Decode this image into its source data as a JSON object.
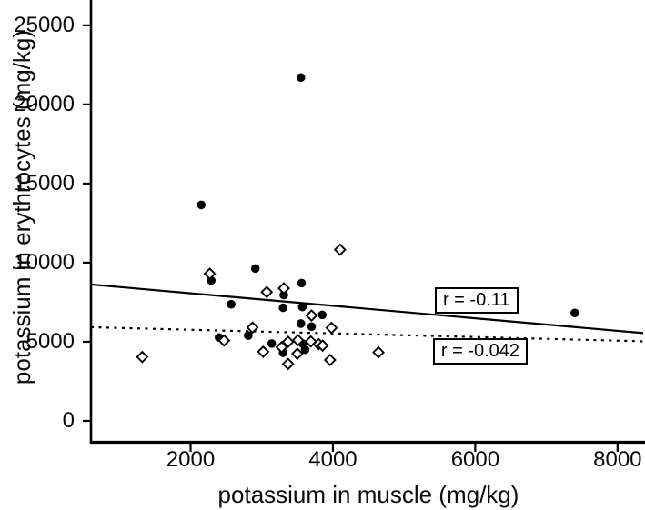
{
  "chart_data": {
    "type": "scatter",
    "title": "",
    "xlabel": "potassium in muscle (mg/kg)",
    "ylabel": "potassium in erythrocytes (mg/kg)",
    "xlim": [
      600,
      8360
    ],
    "ylim": [
      -1265,
      26600
    ],
    "x_ticks": [
      2000,
      4000,
      6000,
      8000
    ],
    "y_ticks": [
      0,
      5000,
      10000,
      15000,
      20000,
      25000
    ],
    "grid": false,
    "legend": "none",
    "colors": {
      "marker": "#000000",
      "line": "#000000",
      "background": "#ffffff"
    },
    "series": [
      {
        "name": "filled circles",
        "marker": "circle",
        "points": [
          [
            3550,
            21700
          ],
          [
            2150,
            13650
          ],
          [
            2910,
            9630
          ],
          [
            2290,
            8870
          ],
          [
            3560,
            8710
          ],
          [
            3310,
            7950
          ],
          [
            2570,
            7370
          ],
          [
            3300,
            7150
          ],
          [
            3570,
            7200
          ],
          [
            3850,
            6700
          ],
          [
            3550,
            6150
          ],
          [
            3700,
            5960
          ],
          [
            2400,
            5270
          ],
          [
            2810,
            5390
          ],
          [
            3140,
            4890
          ],
          [
            3580,
            4870
          ],
          [
            3610,
            4500
          ],
          [
            3300,
            4310
          ],
          [
            7400,
            6820
          ]
        ]
      },
      {
        "name": "open diamonds",
        "marker": "diamond",
        "points": [
          [
            1320,
            4040
          ],
          [
            2270,
            9300
          ],
          [
            3070,
            8140
          ],
          [
            3310,
            8380
          ],
          [
            4100,
            10820
          ],
          [
            3700,
            6660
          ],
          [
            2870,
            5900
          ],
          [
            3980,
            5880
          ],
          [
            2470,
            5080
          ],
          [
            3020,
            4370
          ],
          [
            3370,
            5000
          ],
          [
            3510,
            5100
          ],
          [
            3690,
            5020
          ],
          [
            3280,
            4660
          ],
          [
            3800,
            4850
          ],
          [
            3855,
            4760
          ],
          [
            3500,
            4240
          ],
          [
            3370,
            3600
          ],
          [
            3960,
            3850
          ],
          [
            4640,
            4330
          ]
        ]
      }
    ],
    "fit_lines": [
      {
        "name": "solid fit (circles)",
        "style": "solid",
        "x": [
          600,
          8360
        ],
        "y": [
          8620,
          5550
        ],
        "r_label": "r = -0.11"
      },
      {
        "name": "dashed fit (diamonds)",
        "style": "dashed",
        "x": [
          600,
          8360
        ],
        "y": [
          5920,
          5030
        ],
        "r_label": "r = -0.042"
      }
    ],
    "annotations": [
      {
        "text": "r = -0.11",
        "x": 6020,
        "y": 7610
      },
      {
        "text": "r = -0.042",
        "x": 6070,
        "y": 4370
      }
    ]
  }
}
